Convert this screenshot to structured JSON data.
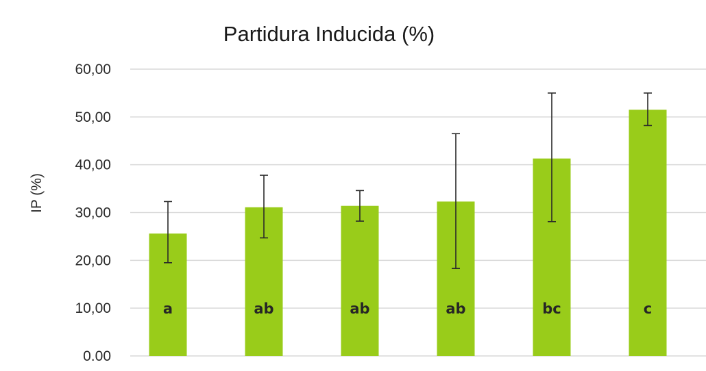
{
  "chart_data": {
    "type": "bar",
    "title": "Partidura Inducida (%)",
    "xlabel": "",
    "ylabel": "IP (%)",
    "ylim": [
      0,
      60
    ],
    "y_ticks": [
      "0.00",
      "10,00",
      "20,00",
      "30,00",
      "40,00",
      "50,00",
      "60,00"
    ],
    "grid": true,
    "bar_color": "#99cc1a",
    "series": [
      {
        "values": [
          25.6,
          31.1,
          31.4,
          32.3,
          41.3,
          51.5
        ],
        "error_low": [
          19.5,
          24.7,
          28.2,
          18.3,
          28.1,
          48.2
        ],
        "error_high": [
          32.3,
          37.8,
          34.6,
          46.5,
          55.0,
          55.0
        ],
        "labels": [
          "a",
          "ab",
          "ab",
          "ab",
          "bc",
          "c"
        ]
      }
    ]
  }
}
